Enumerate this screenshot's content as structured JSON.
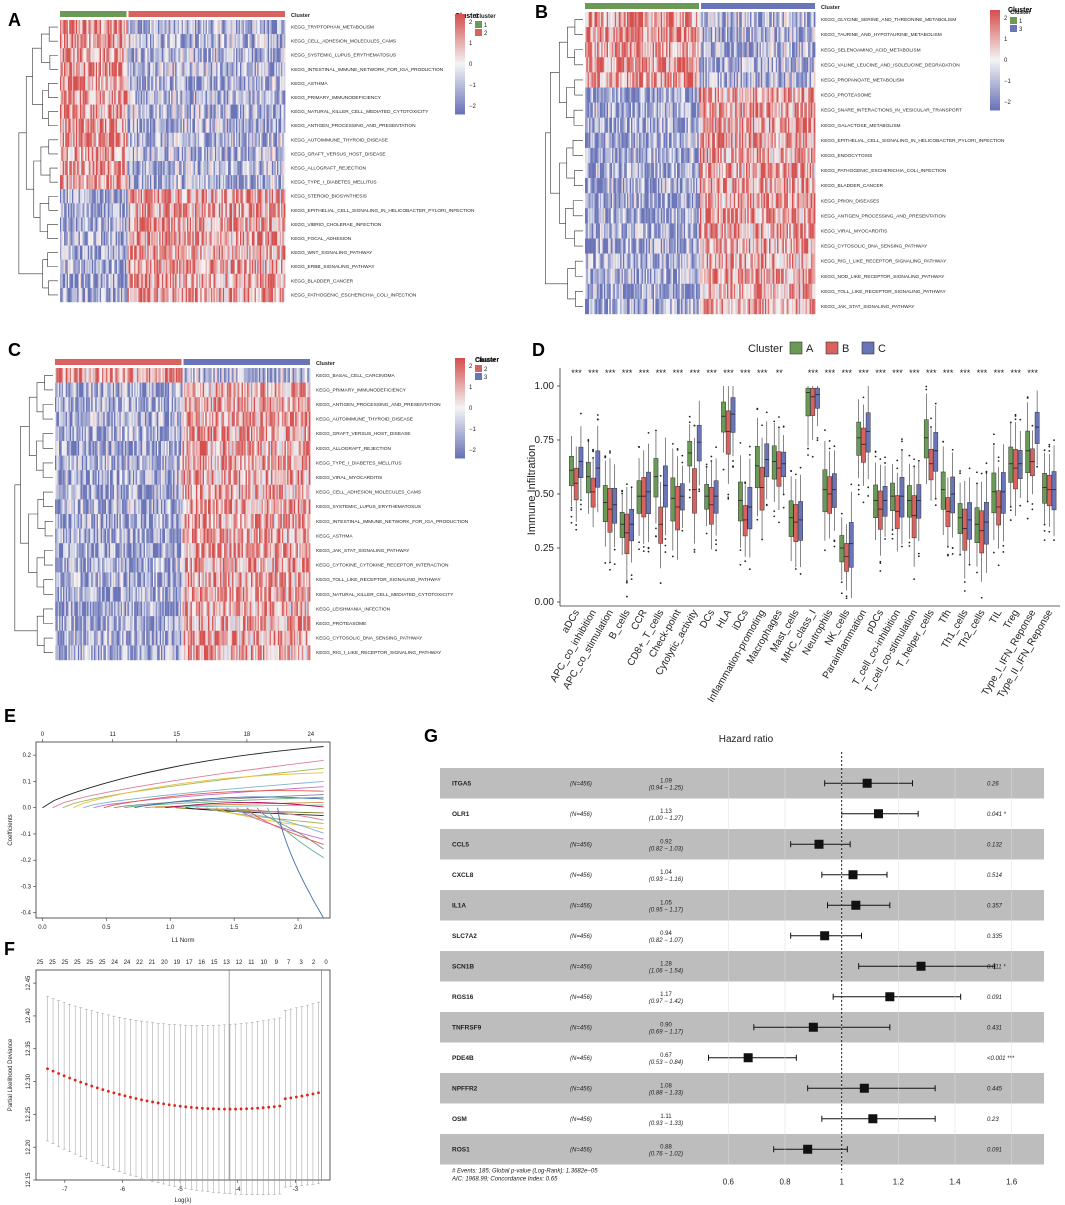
{
  "panels": {
    "A": {
      "letter": "A",
      "legend_title": "Cluster",
      "legend_labels": [
        "1",
        "2"
      ],
      "legend_colors": [
        "#6a9a55",
        "#d9625e"
      ],
      "colorbar_ticks": [
        "2",
        "1",
        "0",
        "−1",
        "−2"
      ],
      "split": 0.3,
      "rows": [
        "KEGG_TRYPTOPHAN_METABOLISM",
        "KEGG_CELL_ADHESION_MOLECULES_CAMS",
        "KEGG_SYSTEMIC_LUPUS_ERYTHEMATOSUS",
        "KEGG_INTESTINAL_IMMUNE_NETWORK_FOR_IGA_PRODUCTION",
        "KEGG_ASTHMA",
        "KEGG_PRIMARY_IMMUNODEFICIENCY",
        "KEGG_NATURAL_KILLER_CELL_MEDIATED_CYTOTOXICITY",
        "KEGG_ANTIGEN_PROCESSING_AND_PRESENTATION",
        "KEGG_AUTOIMMUNE_THYROID_DISEASE",
        "KEGG_GRAFT_VERSUS_HOST_DISEASE",
        "KEGG_ALLOGRAFT_REJECTION",
        "KEGG_TYPE_I_DIABETES_MELLITUS",
        "KEGG_STEROID_BIOSYNTHESIS",
        "KEGG_EPITHELIAL_CELL_SIGNALING_IN_HELICOBACTER_PYLORI_INFECTION",
        "KEGG_VIBRIO_CHOLERAE_INFECTION",
        "KEGG_FOCAL_ADHESION",
        "KEGG_WNT_SIGNALING_PATHWAY",
        "KEGG_ERBB_SIGNALING_PATHWAY",
        "KEGG_BLADDER_CANCER",
        "KEGG_PATHOGENIC_ESCHERICHIA_COLI_INFECTION"
      ],
      "row_pattern": [
        1,
        1,
        1,
        1,
        1,
        1,
        1,
        1,
        1,
        1,
        1,
        1,
        -1,
        -1,
        -1,
        -1,
        -1,
        -1,
        -1,
        -1
      ]
    },
    "B": {
      "letter": "B",
      "legend_title": "Cluster",
      "legend_labels": [
        "1",
        "3"
      ],
      "legend_colors": [
        "#6a9a55",
        "#6a74b8"
      ],
      "colorbar_ticks": [
        "2",
        "1",
        "0",
        "−1",
        "−2"
      ],
      "split": 0.5,
      "rows": [
        "KEGG_GLYCINE_SERINE_AND_THREONINE_METABOLISM",
        "KEGG_TAURINE_AND_HYPOTAURINE_METABOLISM",
        "KEGG_SELENOAMINO_ACID_METABOLISM",
        "KEGG_VALINE_LEUCINE_AND_ISOLEUCINE_DEGRADATION",
        "KEGG_PROPANOATE_METABOLISM",
        "KEGG_PROTEASOME",
        "KEGG_SNARE_INTERACTIONS_IN_VESICULAR_TRANSPORT",
        "KEGG_GALACTOSE_METABOLISM",
        "KEGG_EPITHELIAL_CELL_SIGNALING_IN_HELICOBACTER_PYLORI_INFECTION",
        "KEGG_ENDOCYTOSIS",
        "KEGG_PATHOGENIC_ESCHERICHIA_COLI_INFECTION",
        "KEGG_BLADDER_CANCER",
        "KEGG_PRION_DISEASES",
        "KEGG_ANTIGEN_PROCESSING_AND_PRESENTATION",
        "KEGG_VIRAL_MYOCARDITIS",
        "KEGG_CYTOSOLIC_DNA_SENSING_PATHWAY",
        "KEGG_RIG_I_LIKE_RECEPTOR_SIGNALING_PATHWAY",
        "KEGG_NOD_LIKE_RECEPTOR_SIGNALING_PATHWAY",
        "KEGG_TOLL_LIKE_RECEPTOR_SIGNALING_PATHWAY",
        "KEGG_JAK_STAT_SIGNALING_PATHWAY"
      ],
      "row_pattern": [
        1,
        1,
        1,
        1,
        1,
        -1,
        -1,
        -1,
        -1,
        -1,
        -1,
        -1,
        -1,
        -1,
        -1,
        -1,
        -1,
        -1,
        -1,
        -1
      ]
    },
    "C": {
      "letter": "C",
      "legend_title": "Cluster",
      "legend_labels": [
        "2",
        "3"
      ],
      "legend_colors": [
        "#d9625e",
        "#6a74b8"
      ],
      "colorbar_ticks": [
        "2",
        "1",
        "0",
        "−1",
        "−2"
      ],
      "split": 0.5,
      "rows": [
        "KEGG_BASAL_CELL_CARCINOMA",
        "KEGG_PRIMARY_IMMUNODEFICIENCY",
        "KEGG_ANTIGEN_PROCESSING_AND_PRESENTATION",
        "KEGG_AUTOIMMUNE_THYROID_DISEASE",
        "KEGG_GRAFT_VERSUS_HOST_DISEASE",
        "KEGG_ALLOGRAFT_REJECTION",
        "KEGG_TYPE_I_DIABETES_MELLITUS",
        "KEGG_VIRAL_MYOCARDITIS",
        "KEGG_CELL_ADHESION_MOLECULES_CAMS",
        "KEGG_SYSTEMIC_LUPUS_ERYTHEMATOSUS",
        "KEGG_INTESTINAL_IMMUNE_NETWORK_FOR_IGA_PRODUCTION",
        "KEGG_ASTHMA",
        "KEGG_JAK_STAT_SIGNALING_PATHWAY",
        "KEGG_CYTOKINE_CYTOKINE_RECEPTOR_INTERACTION",
        "KEGG_TOLL_LIKE_RECEPTOR_SIGNALING_PATHWAY",
        "KEGG_NATURAL_KILLER_CELL_MEDIATED_CYTOTOXICITY",
        "KEGG_LEISHMANIA_INFECTION",
        "KEGG_PROTEASOME",
        "KEGG_CYTOSOLIC_DNA_SENSING_PATHWAY",
        "KEGG_RIG_I_LIKE_RECEPTOR_SIGNALING_PATHWAY"
      ],
      "row_pattern": [
        1,
        -1,
        -1,
        -1,
        -1,
        -1,
        -1,
        -1,
        -1,
        -1,
        -1,
        -1,
        -1,
        -1,
        -1,
        -1,
        -1,
        -1,
        -1,
        -1
      ]
    },
    "D": {
      "letter": "D"
    },
    "E": {
      "letter": "E"
    },
    "F": {
      "letter": "F"
    },
    "G": {
      "letter": "G"
    }
  },
  "chart_data": [
    {
      "id": "D",
      "type": "box",
      "legend_title": "Cluster",
      "legend": [
        {
          "name": "A",
          "color": "#6a9a55"
        },
        {
          "name": "B",
          "color": "#d9625e"
        },
        {
          "name": "C",
          "color": "#6a74b8"
        }
      ],
      "ylabel": "Immune Infiltration",
      "ylim": [
        0,
        1.0
      ],
      "yticks": [
        "0.00",
        "0.25",
        "0.50",
        "0.75",
        "1.00"
      ],
      "ytick_values": [
        0,
        0.25,
        0.5,
        0.75,
        1.0
      ],
      "categories": [
        "aDCs",
        "APC_co_inhibition",
        "APC_co_stimulation",
        "B_cells",
        "CCR",
        "CD8+_T_cells",
        "Check-point",
        "Cytolytic_activity",
        "DCs",
        "HLA",
        "iDCs",
        "Inflammation-promoting",
        "Macrophages",
        "Mast_cells",
        "MHC_class_I",
        "Neutrophils",
        "NK_cells",
        "Parainflammation",
        "pDCs",
        "T_cell_co-inhibition",
        "T_cell_co-stimulation",
        "T_helper_cells",
        "Tfh",
        "Th1_cells",
        "Th2_cells",
        "TIL",
        "Treg",
        "Type_I_IFN_Reponse",
        "Type_II_IFN_Reponse"
      ],
      "significance": [
        "***",
        "***",
        "***",
        "***",
        "***",
        "***",
        "***",
        "***",
        "***",
        "***",
        "***",
        "***",
        "**",
        "",
        "***",
        "***",
        "***",
        "***",
        "***",
        "***",
        "***",
        "***",
        "***",
        "***",
        "***",
        "***",
        "***",
        "***",
        ""
      ],
      "medians": [
        [
          0.61,
          0.55,
          0.65
        ],
        [
          0.58,
          0.51,
          0.62
        ],
        [
          0.46,
          0.43,
          0.45
        ],
        [
          0.36,
          0.32,
          0.36
        ],
        [
          0.49,
          0.49,
          0.51
        ],
        [
          0.58,
          0.36,
          0.54
        ],
        [
          0.48,
          0.44,
          0.49
        ],
        [
          0.69,
          0.52,
          0.74
        ],
        [
          0.49,
          0.45,
          0.49
        ],
        [
          0.86,
          0.79,
          0.87
        ],
        [
          0.47,
          0.38,
          0.44
        ],
        [
          0.63,
          0.53,
          0.66
        ],
        [
          0.65,
          0.62,
          0.64
        ],
        [
          0.39,
          0.37,
          0.38
        ],
        [
          0.97,
          0.95,
          0.96
        ],
        [
          0.52,
          0.5,
          0.52
        ],
        [
          0.25,
          0.21,
          0.27
        ],
        [
          0.76,
          0.73,
          0.79
        ],
        [
          0.47,
          0.43,
          0.47
        ],
        [
          0.49,
          0.42,
          0.49
        ],
        [
          0.47,
          0.4,
          0.47
        ],
        [
          0.76,
          0.64,
          0.7
        ],
        [
          0.52,
          0.42,
          0.5
        ],
        [
          0.39,
          0.34,
          0.38
        ],
        [
          0.36,
          0.33,
          0.37
        ],
        [
          0.51,
          0.44,
          0.51
        ],
        [
          0.64,
          0.62,
          0.64
        ],
        [
          0.7,
          0.65,
          0.81
        ],
        [
          0.53,
          0.52,
          0.52
        ]
      ]
    },
    {
      "id": "E",
      "type": "line",
      "xlabel": "L1 Norm",
      "ylabel": "Coefficients",
      "top_ticks": [
        "0",
        "11",
        "15",
        "18",
        "24"
      ],
      "top_tick_positions": [
        0,
        0.55,
        1.05,
        1.6,
        2.1
      ],
      "xticks": [
        "0.0",
        "0.5",
        "1.0",
        "1.5",
        "2.0"
      ],
      "xlim": [
        -0.05,
        2.25
      ],
      "yticks": [
        "0.2",
        "0.1",
        "0.0",
        "-0.1",
        "-0.2",
        "-0.3",
        "-0.4"
      ],
      "ylim": [
        -0.42,
        0.25
      ],
      "path_endpoints": [
        0.23,
        0.18,
        0.15,
        0.13,
        0.1,
        0.08,
        0.06,
        0.05,
        0.04,
        0.03,
        0.02,
        0.01,
        0.0,
        -0.02,
        -0.03,
        -0.05,
        -0.06,
        -0.08,
        -0.1,
        -0.12,
        -0.14,
        -0.16,
        -0.19,
        -0.42
      ]
    },
    {
      "id": "F",
      "type": "scatter",
      "xlabel": "Log(λ)",
      "ylabel": "Partial Likelihood Deviance",
      "top_ticks": [
        "25",
        "25",
        "25",
        "25",
        "25",
        "25",
        "24",
        "24",
        "22",
        "21",
        "20",
        "19",
        "17",
        "16",
        "15",
        "13",
        "12",
        "11",
        "10",
        "9",
        "7",
        "3",
        "2",
        "0"
      ],
      "xticks": [
        "-7",
        "-6",
        "-5",
        "-4",
        "-3"
      ],
      "xlim": [
        -7.5,
        -2.4
      ],
      "yticks": [
        "12.45",
        "12.40",
        "12.35",
        "12.30",
        "12.25",
        "12.20",
        "12.15"
      ],
      "ylim": [
        12.15,
        12.47
      ],
      "vlines": [
        -4.15,
        -2.55
      ],
      "x_start": -7.3,
      "x_end": -2.6,
      "points": 50
    },
    {
      "id": "G",
      "type": "forest",
      "title": "Hazard ratio",
      "xticks": [
        "0.6",
        "0.8",
        "1",
        "1.2",
        "1.4",
        "1.6"
      ],
      "xtick_values": [
        0.6,
        0.8,
        1.0,
        1.2,
        1.4,
        1.6
      ],
      "xlim": [
        0.5,
        1.7
      ],
      "reference": 1.0,
      "rows": [
        {
          "gene": "ITGA5",
          "n": "(N=456)",
          "hr": "1.09",
          "ci": "(0.94 − 1.25)",
          "p": "0.26",
          "est": 1.09,
          "lo": 0.94,
          "hi": 1.25
        },
        {
          "gene": "OLR1",
          "n": "(N=456)",
          "hr": "1.13",
          "ci": "(1.00 − 1.27)",
          "p": "0.041 *",
          "est": 1.13,
          "lo": 1.0,
          "hi": 1.27
        },
        {
          "gene": "CCL5",
          "n": "(N=456)",
          "hr": "0.92",
          "ci": "(0.82 − 1.03)",
          "p": "0.132",
          "est": 0.92,
          "lo": 0.82,
          "hi": 1.03
        },
        {
          "gene": "CXCL8",
          "n": "(N=456)",
          "hr": "1.04",
          "ci": "(0.93 − 1.16)",
          "p": "0.514",
          "est": 1.04,
          "lo": 0.93,
          "hi": 1.16
        },
        {
          "gene": "IL1A",
          "n": "(N=456)",
          "hr": "1.05",
          "ci": "(0.95 − 1.17)",
          "p": "0.357",
          "est": 1.05,
          "lo": 0.95,
          "hi": 1.17
        },
        {
          "gene": "SLC7A2",
          "n": "(N=456)",
          "hr": "0.94",
          "ci": "(0.82 − 1.07)",
          "p": "0.335",
          "est": 0.94,
          "lo": 0.82,
          "hi": 1.07
        },
        {
          "gene": "SCN1B",
          "n": "(N=456)",
          "hr": "1.28",
          "ci": "(1.06 − 1.54)",
          "p": "0.011 *",
          "est": 1.28,
          "lo": 1.06,
          "hi": 1.54
        },
        {
          "gene": "RGS16",
          "n": "(N=456)",
          "hr": "1.17",
          "ci": "(0.97 − 1.42)",
          "p": "0.091",
          "est": 1.17,
          "lo": 0.97,
          "hi": 1.42
        },
        {
          "gene": "TNFRSF9",
          "n": "(N=456)",
          "hr": "0.90",
          "ci": "(0.69 − 1.17)",
          "p": "0.431",
          "est": 0.9,
          "lo": 0.69,
          "hi": 1.17
        },
        {
          "gene": "PDE4B",
          "n": "(N=456)",
          "hr": "0.67",
          "ci": "(0.53 − 0.84)",
          "p": "<0.001 ***",
          "est": 0.67,
          "lo": 0.53,
          "hi": 0.84
        },
        {
          "gene": "NPFFR2",
          "n": "(N=456)",
          "hr": "1.08",
          "ci": "(0.88 − 1.33)",
          "p": "0.445",
          "est": 1.08,
          "lo": 0.88,
          "hi": 1.33
        },
        {
          "gene": "OSM",
          "n": "(N=456)",
          "hr": "1.11",
          "ci": "(0.93 − 1.33)",
          "p": "0.23",
          "est": 1.11,
          "lo": 0.93,
          "hi": 1.33
        },
        {
          "gene": "ROS1",
          "n": "(N=456)",
          "hr": "0.88",
          "ci": "(0.76 − 1.02)",
          "p": "0.091",
          "est": 0.88,
          "lo": 0.76,
          "hi": 1.02
        }
      ],
      "footnote_1": "# Events: 185; Global p-value (Log-Rank): 1.3682e−05",
      "footnote_2": "AIC: 1968.99; Concordance Index: 0.65"
    }
  ],
  "colors": {
    "heat_high": "#d6504f",
    "heat_mid": "#f4f4f4",
    "heat_low": "#6a74b8",
    "box_a": "#6a9a55",
    "box_b": "#d9625e",
    "box_c": "#6a74b8",
    "forest_band": "#bdbdbd",
    "cv_point": "#e0231a"
  }
}
